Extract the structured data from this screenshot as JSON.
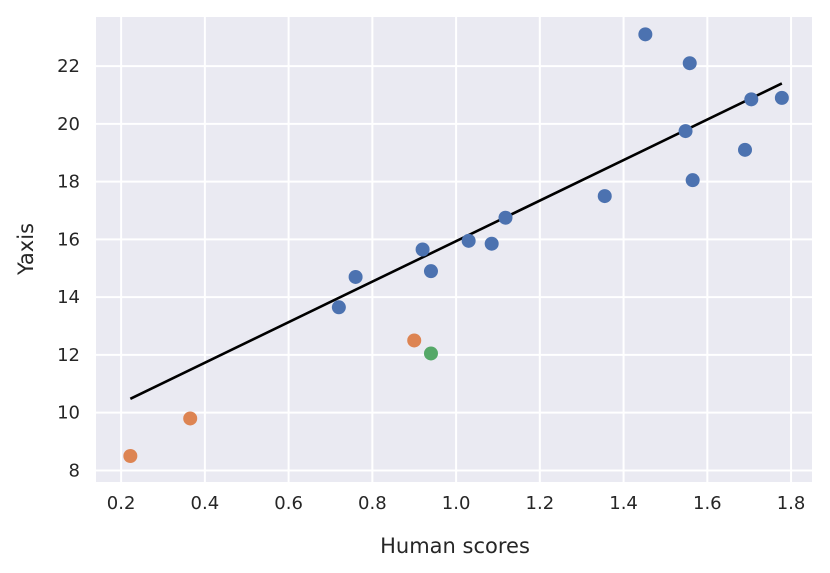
{
  "chart_data": {
    "type": "scatter",
    "xlabel": "Human scores",
    "ylabel": "Yaxis",
    "xlim": [
      0.14,
      1.85
    ],
    "ylim": [
      7.6,
      23.7
    ],
    "xticks": [
      "0.2",
      "0.4",
      "0.6",
      "0.8",
      "1.0",
      "1.2",
      "1.4",
      "1.6",
      "1.8"
    ],
    "yticks": [
      "8",
      "10",
      "12",
      "14",
      "16",
      "18",
      "20",
      "22"
    ],
    "grid": true,
    "background": "#eaeaf2",
    "series": [
      {
        "color": "#4c72b0",
        "points": [
          {
            "x": 0.72,
            "y": 13.65
          },
          {
            "x": 0.76,
            "y": 14.7
          },
          {
            "x": 0.92,
            "y": 15.65
          },
          {
            "x": 0.94,
            "y": 14.9
          },
          {
            "x": 1.03,
            "y": 15.95
          },
          {
            "x": 1.085,
            "y": 15.85
          },
          {
            "x": 1.118,
            "y": 16.75
          },
          {
            "x": 1.355,
            "y": 17.5
          },
          {
            "x": 1.452,
            "y": 23.1
          },
          {
            "x": 1.548,
            "y": 19.75
          },
          {
            "x": 1.558,
            "y": 22.1
          },
          {
            "x": 1.565,
            "y": 18.05
          },
          {
            "x": 1.69,
            "y": 19.1
          },
          {
            "x": 1.705,
            "y": 20.85
          },
          {
            "x": 1.778,
            "y": 20.9
          }
        ]
      },
      {
        "color": "#dd8452",
        "points": [
          {
            "x": 0.222,
            "y": 8.5
          },
          {
            "x": 0.365,
            "y": 9.8
          },
          {
            "x": 0.9,
            "y": 12.5
          }
        ]
      },
      {
        "color": "#55a868",
        "points": [
          {
            "x": 0.94,
            "y": 12.05
          }
        ]
      }
    ],
    "fit_line": {
      "color": "#000000",
      "points": [
        {
          "x": 0.222,
          "y": 10.48
        },
        {
          "x": 1.778,
          "y": 21.4
        }
      ]
    }
  }
}
